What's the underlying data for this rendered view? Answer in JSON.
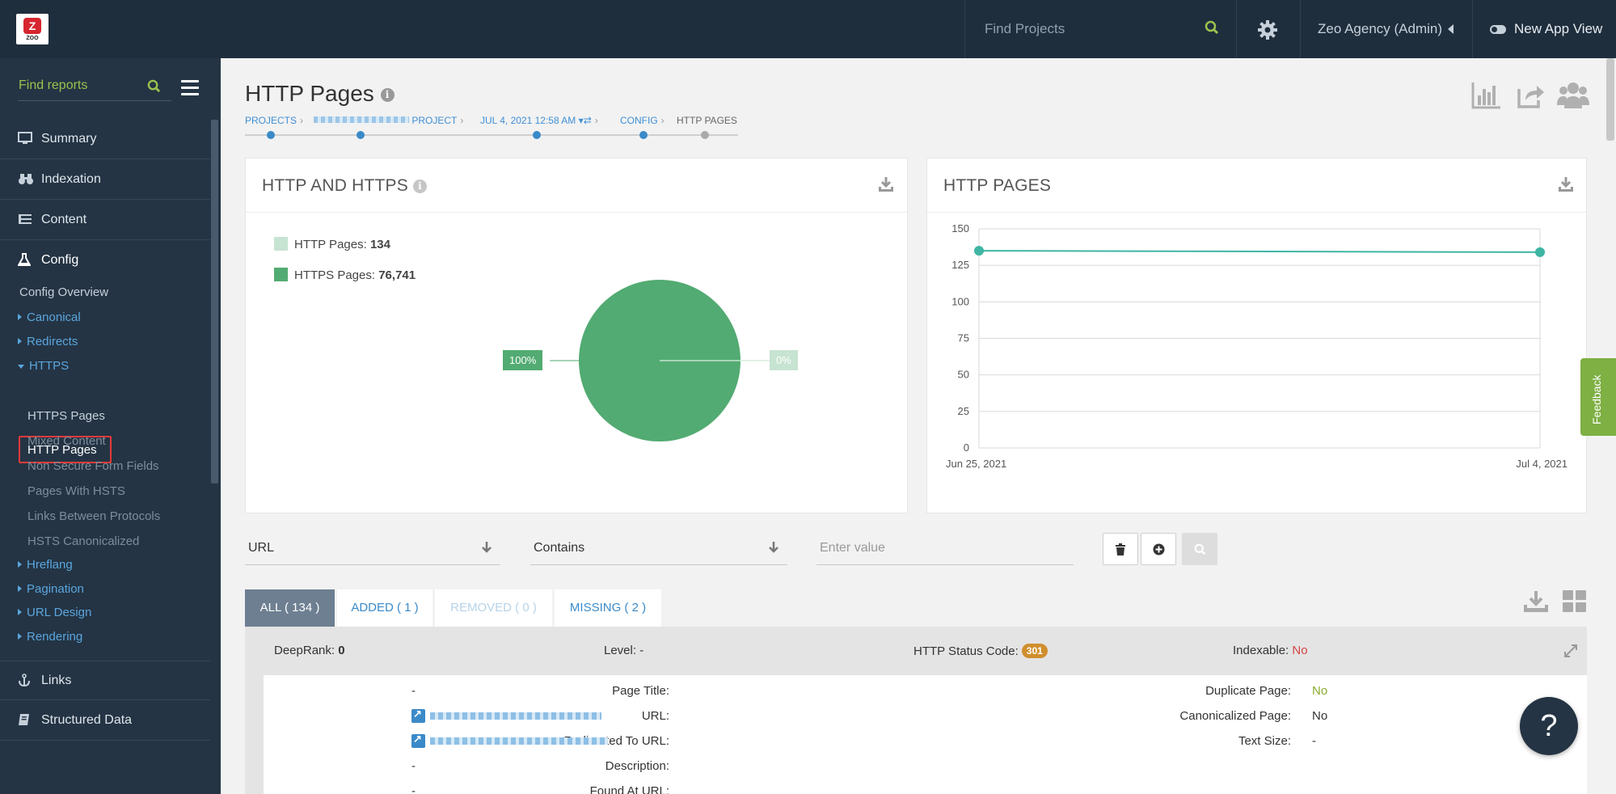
{
  "topbar": {
    "logo_text": "ZOO",
    "search_placeholder": "Find Projects",
    "user_label": "Zeo Agency (Admin)",
    "new_view_label": "New App View"
  },
  "sidebar": {
    "search_placeholder": "Find reports",
    "main_items": [
      {
        "label": "Summary",
        "icon": "monitor-icon"
      },
      {
        "label": "Indexation",
        "icon": "binoculars-icon"
      },
      {
        "label": "Content",
        "icon": "list-icon"
      },
      {
        "label": "Config",
        "icon": "flask-icon"
      }
    ],
    "config_overview": "Config Overview",
    "groups": [
      "Canonical",
      "Redirects",
      "HTTPS"
    ],
    "https_children": [
      "HTTP Pages",
      "HTTPS Pages",
      "Mixed Content",
      "Non Secure Form Fields",
      "Pages With HSTS",
      "Links Between Protocols",
      "HSTS Canonicalized"
    ],
    "more_groups": [
      "Hreflang",
      "Pagination",
      "URL Design",
      "Rendering"
    ],
    "bottom_items": [
      {
        "label": "Links",
        "icon": "anchor-icon"
      },
      {
        "label": "Structured Data",
        "icon": "book-icon"
      }
    ]
  },
  "page": {
    "title": "HTTP Pages",
    "breadcrumbs": [
      "PROJECTS",
      "PROJECT",
      "JUL 4, 2021 12:58 AM",
      "CONFIG",
      "HTTP PAGES"
    ]
  },
  "pie_card": {
    "title": "HTTP AND HTTPS",
    "legend": [
      {
        "label": "HTTP Pages:",
        "value": "134",
        "color": "#c7e3d1"
      },
      {
        "label": "HTTPS Pages:",
        "value": "76,741",
        "color": "#52ab72"
      }
    ],
    "label_left": "100%",
    "label_right": "0%"
  },
  "line_card": {
    "title": "HTTP PAGES"
  },
  "chart_data": {
    "type": "line",
    "title": "HTTP PAGES",
    "x": [
      "Jun 25, 2021",
      "Jul 4, 2021"
    ],
    "series": [
      {
        "values": [
          135,
          134
        ]
      }
    ],
    "ylim": [
      0,
      150
    ],
    "yticks": [
      0,
      25,
      50,
      75,
      100,
      125,
      150
    ],
    "grid": true,
    "color": "#3fb5a4"
  },
  "filter": {
    "field": "URL",
    "operator": "Contains",
    "value_placeholder": "Enter value"
  },
  "tabs": [
    {
      "label": "ALL ( 134 )",
      "state": "active"
    },
    {
      "label": "ADDED ( 1 )",
      "state": "normal"
    },
    {
      "label": "REMOVED ( 0 )",
      "state": "disabled"
    },
    {
      "label": "MISSING ( 2 )",
      "state": "normal"
    }
  ],
  "result": {
    "deeprank_label": "DeepRank:",
    "deeprank_value": "0",
    "level_label": "Level:",
    "level_value": "-",
    "status_label": "HTTP Status Code:",
    "status_value": "301",
    "indexable_label": "Indexable:",
    "indexable_value": "No",
    "left_fields": [
      {
        "label": "Page Title:",
        "value": "-"
      },
      {
        "label": "URL:",
        "value": ""
      },
      {
        "label": "Redirected To URL:",
        "value": ""
      },
      {
        "label": "Description:",
        "value": "-"
      },
      {
        "label": "Found At URL:",
        "value": "-"
      }
    ],
    "right_fields": [
      {
        "label": "Duplicate Page:",
        "value": "No"
      },
      {
        "label": "Canonicalized Page:",
        "value": "No"
      },
      {
        "label": "Text Size:",
        "value": "-"
      }
    ]
  },
  "feedback_label": "Feedback",
  "help_label": "?"
}
